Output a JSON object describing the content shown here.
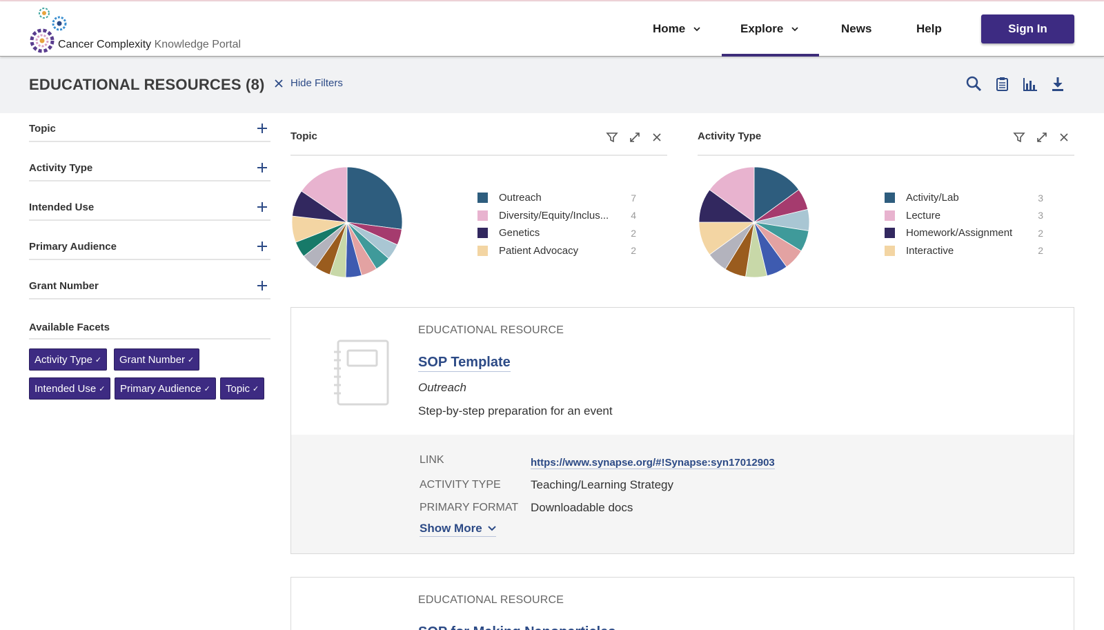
{
  "header": {
    "logo_text_a": "Cancer Complexity",
    "logo_text_b": "Knowledge Portal",
    "nav": [
      {
        "label": "Home",
        "dropdown": true
      },
      {
        "label": "Explore",
        "dropdown": true,
        "active": true
      },
      {
        "label": "News",
        "dropdown": false
      },
      {
        "label": "Help",
        "dropdown": false
      }
    ],
    "sign_in_label": "Sign In"
  },
  "titlebar": {
    "title": "EDUCATIONAL RESOURCES (8)",
    "hide_filters_label": "Hide Filters",
    "tools": [
      "search-icon",
      "clipboard-icon",
      "bar-chart-icon",
      "download-icon"
    ]
  },
  "facets": {
    "items": [
      "Topic",
      "Activity Type",
      "Intended Use",
      "Primary Audience",
      "Grant Number"
    ],
    "available_label": "Available Facets",
    "chips": [
      "Activity Type",
      "Grant Number",
      "Intended Use",
      "Primary Audience",
      "Topic"
    ]
  },
  "charts": {
    "topic": {
      "title": "Topic",
      "legend": [
        {
          "name": "Outreach",
          "count": "7",
          "color": "#2e5d7e"
        },
        {
          "name": "Diversity/Equity/Inclus...",
          "count": "4",
          "color": "#e8b3cf"
        },
        {
          "name": "Genetics",
          "count": "2",
          "color": "#32285f"
        },
        {
          "name": "Patient Advocacy",
          "count": "2",
          "color": "#f3d5a3"
        }
      ]
    },
    "activity": {
      "title": "Activity Type",
      "legend": [
        {
          "name": "Activity/Lab",
          "count": "3",
          "color": "#2e5d7e"
        },
        {
          "name": "Lecture",
          "count": "3",
          "color": "#e8b3cf"
        },
        {
          "name": "Homework/Assignment",
          "count": "2",
          "color": "#32285f"
        },
        {
          "name": "Interactive",
          "count": "2",
          "color": "#f3d5a3"
        }
      ]
    }
  },
  "chart_data": [
    {
      "type": "pie",
      "title": "Topic",
      "categories": [
        "Outreach",
        "Diversity/Equity/Inclus...",
        "Genetics",
        "Patient Advocacy"
      ],
      "values": [
        7,
        4,
        2,
        2
      ]
    },
    {
      "type": "pie",
      "title": "Activity Type",
      "categories": [
        "Activity/Lab",
        "Lecture",
        "Homework/Assignment",
        "Interactive"
      ],
      "values": [
        3,
        3,
        2,
        2
      ]
    }
  ],
  "results": [
    {
      "type_label": "EDUCATIONAL RESOURCE",
      "title": "SOP Template",
      "subtitle": "Outreach",
      "description": "Step-by-step preparation for an event",
      "meta": {
        "link_key": "LINK",
        "link_value": "https://www.synapse.org/#!Synapse:syn17012903",
        "activity_key": "ACTIVITY TYPE",
        "activity_value": "Teaching/Learning Strategy",
        "format_key": "PRIMARY FORMAT",
        "format_value": "Downloadable docs"
      },
      "show_more_label": "Show More"
    },
    {
      "type_label": "EDUCATIONAL RESOURCE",
      "title": "SOP for Making Nanoparticles"
    }
  ]
}
